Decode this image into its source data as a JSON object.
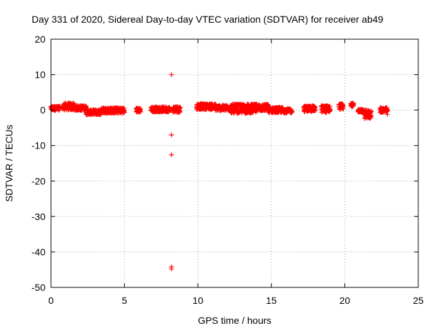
{
  "chart_data": {
    "type": "scatter",
    "title": "Day 331 of 2020, Sidereal Day-to-day VTEC variation (SDTVAR) for receiver ab49",
    "xlabel": "GPS time / hours",
    "ylabel": "SDTVAR / TECUs",
    "xlim": [
      0,
      25
    ],
    "ylim": [
      -50,
      20
    ],
    "xticks": [
      0,
      5,
      10,
      15,
      20,
      25
    ],
    "yticks": [
      -50,
      -40,
      -30,
      -20,
      -10,
      0,
      10,
      20
    ],
    "grid": true,
    "marker": "+",
    "series": [
      {
        "name": "SDTVAR",
        "color": "#ff0000",
        "segments": [
          {
            "x_start": 0.0,
            "x_end": 0.6,
            "y_mid": 0.5,
            "y_spread": 1.2
          },
          {
            "x_start": 0.8,
            "x_end": 1.6,
            "y_mid": 1.0,
            "y_spread": 2.0
          },
          {
            "x_start": 1.6,
            "x_end": 2.4,
            "y_mid": 0.6,
            "y_spread": 1.4
          },
          {
            "x_start": 2.4,
            "x_end": 3.4,
            "y_mid": -0.6,
            "y_spread": 1.4
          },
          {
            "x_start": 3.4,
            "x_end": 5.0,
            "y_mid": -0.1,
            "y_spread": 1.6
          },
          {
            "x_start": 5.8,
            "x_end": 6.1,
            "y_mid": 0.0,
            "y_spread": 1.2
          },
          {
            "x_start": 6.8,
            "x_end": 8.1,
            "y_mid": 0.2,
            "y_spread": 1.4
          },
          {
            "x_start": 8.3,
            "x_end": 8.8,
            "y_mid": 0.2,
            "y_spread": 1.8
          },
          {
            "x_start": 9.9,
            "x_end": 11.2,
            "y_mid": 1.0,
            "y_spread": 1.6
          },
          {
            "x_start": 11.2,
            "x_end": 12.2,
            "y_mid": 0.6,
            "y_spread": 1.6
          },
          {
            "x_start": 12.2,
            "x_end": 14.0,
            "y_mid": 0.4,
            "y_spread": 2.6
          },
          {
            "x_start": 14.0,
            "x_end": 14.8,
            "y_mid": 0.7,
            "y_spread": 2.0
          },
          {
            "x_start": 14.8,
            "x_end": 15.8,
            "y_mid": 0.0,
            "y_spread": 1.6
          },
          {
            "x_start": 15.8,
            "x_end": 16.4,
            "y_mid": -0.2,
            "y_spread": 1.2
          },
          {
            "x_start": 17.2,
            "x_end": 18.0,
            "y_mid": 0.4,
            "y_spread": 1.6
          },
          {
            "x_start": 18.4,
            "x_end": 19.0,
            "y_mid": 0.3,
            "y_spread": 2.0
          },
          {
            "x_start": 19.6,
            "x_end": 19.9,
            "y_mid": 1.0,
            "y_spread": 1.6
          },
          {
            "x_start": 20.4,
            "x_end": 20.6,
            "y_mid": 1.5,
            "y_spread": 1.0
          },
          {
            "x_start": 20.9,
            "x_end": 21.3,
            "y_mid": -0.2,
            "y_spread": 0.8
          },
          {
            "x_start": 21.3,
            "x_end": 21.8,
            "y_mid": -1.2,
            "y_spread": 2.4
          },
          {
            "x_start": 22.4,
            "x_end": 22.9,
            "y_mid": 0.0,
            "y_spread": 1.4
          }
        ],
        "outliers": [
          {
            "x": 8.2,
            "y": 10.0
          },
          {
            "x": 8.2,
            "y": -7.0
          },
          {
            "x": 8.2,
            "y": -12.6
          },
          {
            "x": 8.2,
            "y": -44.2
          },
          {
            "x": 8.2,
            "y": -44.8
          },
          {
            "x": 22.9,
            "y": -1.2
          }
        ]
      }
    ]
  }
}
